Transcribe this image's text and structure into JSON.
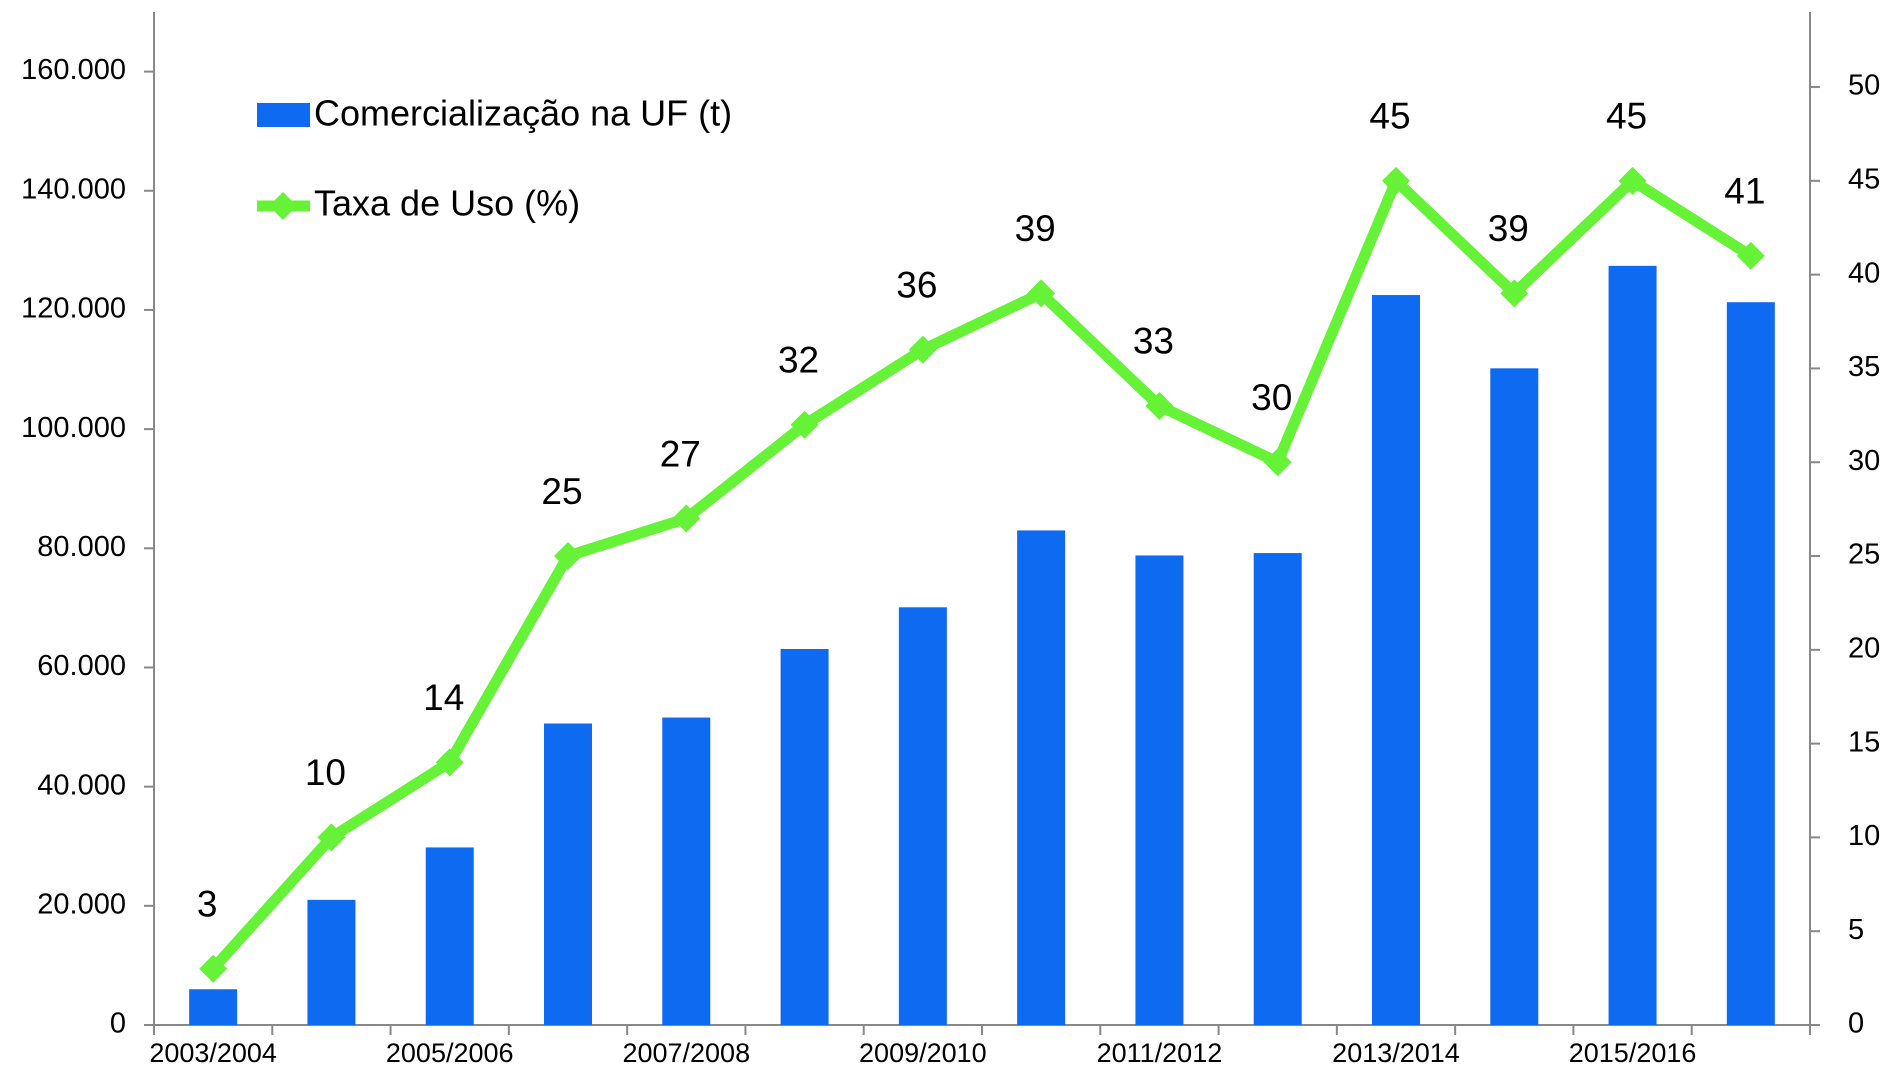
{
  "chart_data": {
    "type": "bar_line",
    "categories": [
      "2003/2004",
      null,
      "2005/2006",
      null,
      "2007/2008",
      null,
      "2009/2010",
      null,
      "2011/2012",
      null,
      "2013/2014",
      null,
      "2015/2016",
      null
    ],
    "series": [
      {
        "name": "Comercialização na UF (t)",
        "type": "bar",
        "color": "#0f6af2",
        "axis": "y",
        "values": [
          6000,
          21000,
          29800,
          50600,
          51600,
          63100,
          70100,
          83000,
          78800,
          79200,
          122500,
          110200,
          127400,
          121300
        ]
      },
      {
        "name": "Taxa de Uso (%)",
        "type": "line",
        "color": "#66f237",
        "axis": "y2",
        "values": [
          3,
          10,
          14,
          25,
          27,
          32,
          36,
          39,
          33,
          30,
          45,
          39,
          45,
          41
        ]
      }
    ],
    "ylim": [
      0,
      170000
    ],
    "yticks": [
      0,
      {
        "value": 20000,
        "label": "20.000"
      },
      {
        "value": 40000,
        "label": "40.000"
      },
      {
        "value": 60000,
        "label": "60.000"
      },
      {
        "value": 80000,
        "label": "80.000"
      },
      {
        "value": 100000,
        "label": "100.000"
      },
      {
        "value": 120000,
        "label": "120.000"
      },
      {
        "value": 140000,
        "label": "140.000"
      },
      {
        "value": 160000,
        "label": "160.000"
      }
    ],
    "y2lim": [
      0,
      54
    ],
    "y2ticks": [
      0,
      5,
      10,
      15,
      20,
      25,
      30,
      35,
      40,
      45,
      50
    ],
    "grid": false
  }
}
